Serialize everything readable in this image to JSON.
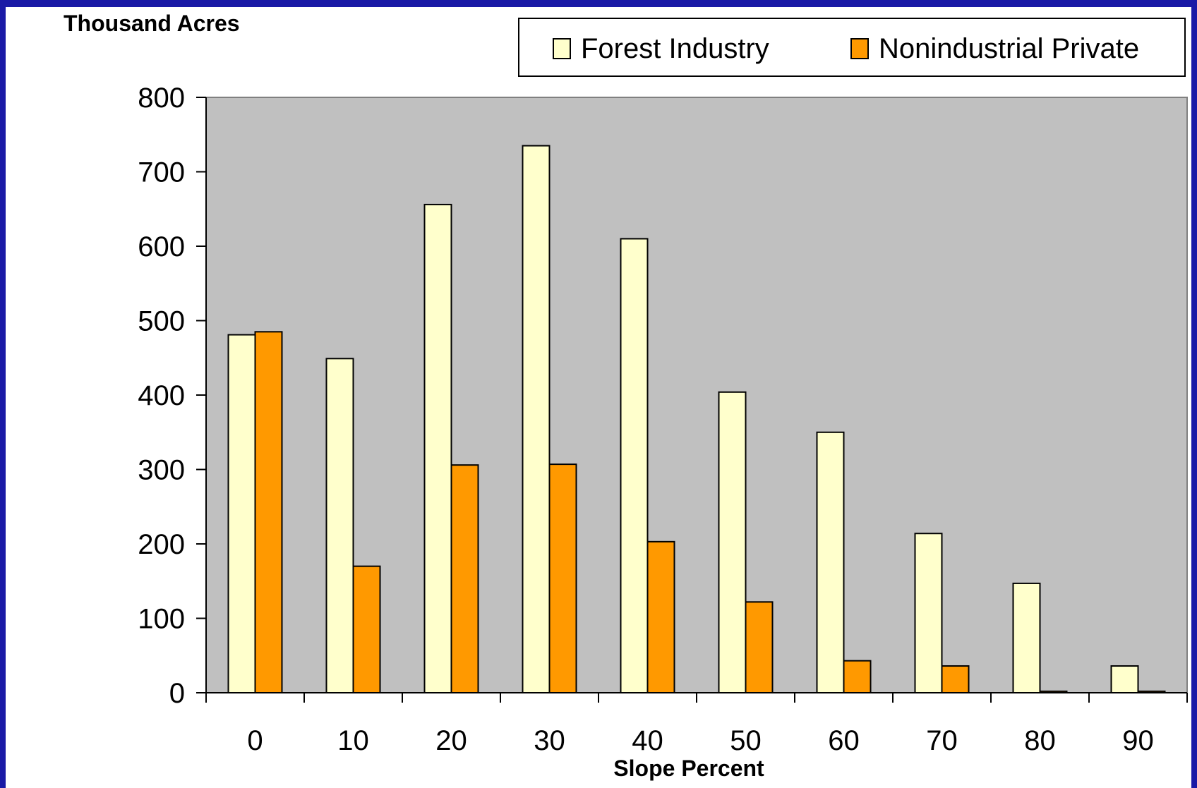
{
  "chart_data": {
    "type": "bar",
    "title": "",
    "xlabel": "Slope Percent",
    "ylabel": "Thousand Acres",
    "categories": [
      "0",
      "10",
      "20",
      "30",
      "40",
      "50",
      "60",
      "70",
      "80",
      "90"
    ],
    "series": [
      {
        "name": "Forest Industry",
        "color": "#ffffcc",
        "values": [
          481,
          449,
          656,
          735,
          610,
          404,
          350,
          214,
          147,
          36
        ]
      },
      {
        "name": "Nonindustrial Private",
        "color": "#ff9900",
        "values": [
          485,
          170,
          306,
          307,
          203,
          122,
          43,
          36,
          2,
          2
        ]
      }
    ],
    "yticks": [
      "0",
      "100",
      "200",
      "300",
      "400",
      "500",
      "600",
      "700",
      "800"
    ],
    "ylim": [
      0,
      800
    ],
    "grid": false,
    "legend_position": "top-right",
    "plot_background": "#c0c0c0",
    "frame_color": "#1a1aa6"
  }
}
